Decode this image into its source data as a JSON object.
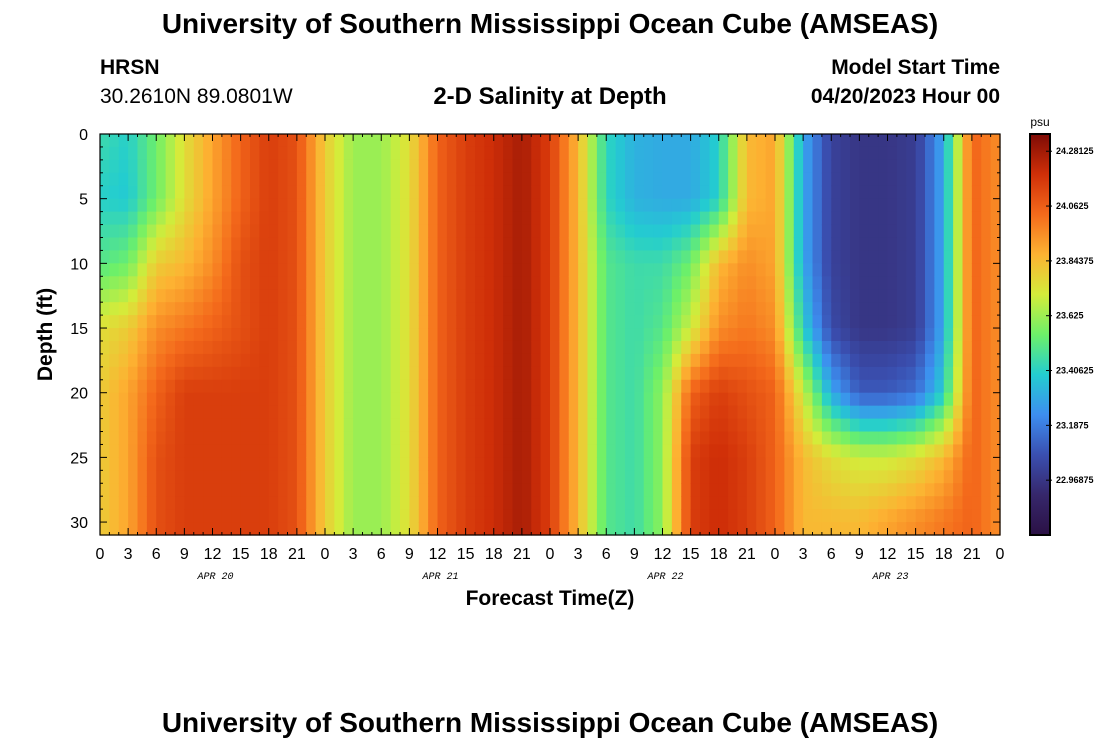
{
  "header": {
    "title": "University of Southern Mississippi Ocean Cube (AMSEAS)",
    "station": "HRSN",
    "coordinates": "30.2610N  89.0801W",
    "subtitle": "2-D Salinity at Depth",
    "model_start_label": "Model Start Time",
    "model_start_value": "04/20/2023 Hour 00"
  },
  "footer": {
    "title": "University of Southern Mississippi Ocean Cube (AMSEAS)"
  },
  "chart_data": {
    "type": "heatmap",
    "title": "2-D Salinity at Depth",
    "xlabel": "Forecast Time(Z)",
    "ylabel": "Depth (ft)",
    "x_tick_labels": [
      "0",
      "3",
      "6",
      "9",
      "12",
      "15",
      "18",
      "21",
      "0",
      "3",
      "6",
      "9",
      "12",
      "15",
      "18",
      "21",
      "0",
      "3",
      "6",
      "9",
      "12",
      "15",
      "18",
      "21",
      "0",
      "3",
      "6",
      "9",
      "12",
      "15",
      "18",
      "21",
      "0"
    ],
    "day_labels": [
      "APR 20",
      "APR 21",
      "APR 22",
      "APR 23"
    ],
    "y_ticks": [
      0,
      5,
      10,
      15,
      20,
      25,
      30
    ],
    "ylim": [
      0,
      31
    ],
    "x_hours": [
      0,
      3,
      6,
      9,
      12,
      15,
      18,
      21,
      24,
      27,
      30,
      33,
      36,
      39,
      42,
      45,
      48,
      51,
      54,
      57,
      60,
      63,
      66,
      69,
      72,
      75,
      78,
      81,
      84,
      87,
      90,
      93,
      96
    ],
    "depths_ft": [
      0,
      5,
      10,
      15,
      20,
      25,
      30
    ],
    "salinity_psu": [
      [
        23.45,
        23.4,
        23.55,
        23.75,
        23.9,
        24.05,
        24.15,
        24.1,
        23.8,
        23.62,
        23.62,
        23.75,
        24.05,
        24.15,
        24.2,
        24.27,
        24.15,
        23.85,
        23.42,
        23.32,
        23.3,
        23.3,
        23.4,
        23.85,
        23.9,
        23.3,
        23.02,
        22.97,
        22.97,
        23.0,
        23.3,
        24.05,
        23.95
      ],
      [
        23.4,
        23.38,
        23.55,
        23.75,
        23.9,
        24.05,
        24.15,
        24.1,
        23.8,
        23.62,
        23.62,
        23.75,
        24.05,
        24.15,
        24.2,
        24.27,
        24.15,
        23.85,
        23.42,
        23.32,
        23.3,
        23.3,
        23.4,
        23.85,
        23.9,
        23.3,
        23.02,
        22.97,
        22.97,
        23.0,
        23.3,
        24.05,
        23.95
      ],
      [
        23.5,
        23.55,
        23.8,
        23.85,
        23.95,
        24.1,
        24.15,
        24.1,
        23.8,
        23.62,
        23.62,
        23.75,
        24.05,
        24.15,
        24.2,
        24.27,
        24.15,
        23.85,
        23.5,
        23.45,
        23.45,
        23.55,
        23.85,
        23.95,
        23.9,
        23.3,
        23.02,
        22.97,
        22.97,
        23.0,
        23.3,
        24.05,
        23.95
      ],
      [
        23.75,
        23.8,
        23.95,
        24.0,
        24.05,
        24.1,
        24.15,
        24.1,
        23.8,
        23.62,
        23.62,
        23.75,
        24.05,
        24.15,
        24.2,
        24.27,
        24.15,
        23.85,
        23.5,
        23.45,
        23.5,
        23.7,
        23.95,
        24.0,
        23.95,
        23.4,
        23.05,
        22.97,
        22.97,
        23.0,
        23.3,
        24.05,
        23.95
      ],
      [
        23.8,
        23.9,
        24.05,
        24.15,
        24.15,
        24.15,
        24.15,
        24.1,
        23.8,
        23.62,
        23.62,
        23.75,
        24.05,
        24.15,
        24.2,
        24.27,
        24.15,
        23.85,
        23.5,
        23.45,
        23.6,
        24.05,
        24.15,
        24.1,
        24.05,
        23.7,
        23.3,
        23.1,
        23.1,
        23.15,
        23.4,
        24.05,
        23.95
      ],
      [
        23.8,
        23.9,
        24.1,
        24.15,
        24.15,
        24.15,
        24.15,
        24.1,
        23.8,
        23.62,
        23.62,
        23.75,
        24.05,
        24.15,
        24.2,
        24.27,
        24.15,
        23.85,
        23.5,
        23.45,
        23.6,
        24.15,
        24.2,
        24.15,
        24.05,
        23.85,
        23.75,
        23.7,
        23.7,
        23.75,
        23.85,
        24.05,
        23.95
      ],
      [
        23.8,
        23.9,
        24.1,
        24.15,
        24.15,
        24.15,
        24.15,
        24.1,
        23.8,
        23.62,
        23.62,
        23.75,
        24.05,
        24.15,
        24.2,
        24.27,
        24.15,
        23.85,
        23.5,
        23.45,
        23.6,
        24.15,
        24.2,
        24.15,
        24.05,
        23.85,
        23.85,
        23.85,
        23.9,
        23.95,
        24.0,
        24.05,
        23.95
      ]
    ],
    "colorbar": {
      "unit": "psu",
      "min": 22.75,
      "max": 24.35,
      "tick_values": [
        24.28125,
        24.0625,
        23.84375,
        23.625,
        23.40625,
        23.1875,
        22.96875
      ],
      "tick_labels": [
        "24.28125",
        "24.0625",
        "23.84375",
        "23.625",
        "23.40625",
        "23.1875",
        "22.96875"
      ]
    },
    "colors": {
      "stops": [
        "#2b1145",
        "#36276b",
        "#3a4fb0",
        "#3d8ef0",
        "#23cdd0",
        "#6df069",
        "#d4ec3a",
        "#fdb232",
        "#f46a1b",
        "#d02f08",
        "#7e0b05"
      ]
    },
    "grid": false
  }
}
